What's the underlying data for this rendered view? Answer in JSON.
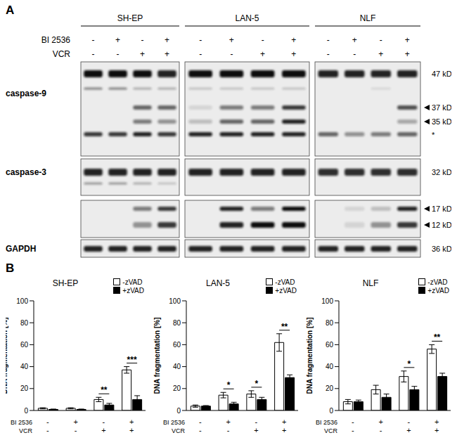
{
  "panel_labels": [
    "A",
    "B"
  ],
  "blot": {
    "cell_lines": [
      "SH-EP",
      "LAN-5",
      "NLF"
    ],
    "treatments": [
      {
        "label": "BI 2536",
        "values": [
          "-",
          "+",
          "-",
          "+"
        ]
      },
      {
        "label": "VCR",
        "values": [
          "-",
          "-",
          "+",
          "+"
        ]
      }
    ],
    "rows": [
      {
        "label": "caspase-9",
        "markers": [
          {
            "text": "47 kD",
            "arrow": false
          },
          {
            "text": "37 kD",
            "arrow": true
          },
          {
            "text": "35 kD",
            "arrow": true
          },
          {
            "text": "*",
            "arrow": false
          }
        ]
      },
      {
        "label": "caspase-3",
        "markers": [
          {
            "text": "32 kD",
            "arrow": false
          }
        ]
      },
      {
        "label": null,
        "markers": [
          {
            "text": "17 kD",
            "arrow": true
          },
          {
            "text": "12 kD",
            "arrow": true
          }
        ]
      },
      {
        "label": "GAPDH",
        "markers": [
          {
            "text": "36 kD",
            "arrow": false
          }
        ]
      }
    ]
  },
  "chart_data": [
    {
      "type": "bar",
      "title": "SH-EP",
      "ylabel": "DNA fragmentation [%]",
      "categories": [
        null,
        null,
        null,
        null
      ],
      "x_rows": [
        {
          "label": "BI 2536",
          "values": [
            "-",
            "+",
            "-",
            "+"
          ]
        },
        {
          "label": "VCR",
          "values": [
            "-",
            "-",
            "+",
            "+"
          ]
        }
      ],
      "ylim": [
        0,
        100
      ],
      "yticks": [
        0,
        20,
        40,
        60,
        80,
        100
      ],
      "legend": "top right",
      "series": [
        {
          "name": "-zVAD",
          "color": "#ffffff",
          "values": [
            2,
            2,
            10,
            37
          ],
          "errors": [
            0.5,
            0.5,
            2,
            3
          ]
        },
        {
          "name": "+zVAD",
          "color": "#000000",
          "values": [
            1,
            1,
            5,
            10
          ],
          "errors": [
            0.3,
            0.3,
            1.5,
            3.5
          ]
        }
      ],
      "significance": [
        null,
        null,
        "**",
        "***"
      ]
    },
    {
      "type": "bar",
      "title": "LAN-5",
      "ylabel": "DNA fragmentation [%]",
      "categories": [
        null,
        null,
        null,
        null
      ],
      "x_rows": [
        {
          "label": "BI 2536",
          "values": [
            "-",
            "+",
            "-",
            "+"
          ]
        },
        {
          "label": "VCR",
          "values": [
            "-",
            "-",
            "+",
            "+"
          ]
        }
      ],
      "ylim": [
        0,
        100
      ],
      "yticks": [
        0,
        20,
        40,
        60,
        80,
        100
      ],
      "legend": "top right",
      "series": [
        {
          "name": "-zVAD",
          "color": "#ffffff",
          "values": [
            4,
            14,
            15,
            62
          ],
          "errors": [
            1,
            2.5,
            3,
            8
          ]
        },
        {
          "name": "+zVAD",
          "color": "#000000",
          "values": [
            4,
            6,
            10,
            30
          ],
          "errors": [
            0.5,
            1.5,
            2,
            2.5
          ]
        }
      ],
      "significance": [
        null,
        "*",
        "*",
        "**"
      ]
    },
    {
      "type": "bar",
      "title": "NLF",
      "ylabel": "DNA fragmentation [%]",
      "categories": [
        null,
        null,
        null,
        null
      ],
      "x_rows": [
        {
          "label": "BI 2536",
          "values": [
            "-",
            "+",
            "-",
            "+"
          ]
        },
        {
          "label": "VCR",
          "values": [
            "-",
            "-",
            "+",
            "+"
          ]
        }
      ],
      "ylim": [
        0,
        100
      ],
      "yticks": [
        0,
        20,
        40,
        60,
        80,
        100
      ],
      "legend": "top right",
      "series": [
        {
          "name": "-zVAD",
          "color": "#ffffff",
          "values": [
            8,
            19,
            31,
            56
          ],
          "errors": [
            2,
            4,
            5,
            4
          ]
        },
        {
          "name": "+zVAD",
          "color": "#000000",
          "values": [
            8,
            12,
            19,
            31
          ],
          "errors": [
            1.5,
            3,
            3,
            3
          ]
        }
      ],
      "significance": [
        null,
        null,
        "*",
        "**"
      ]
    }
  ]
}
